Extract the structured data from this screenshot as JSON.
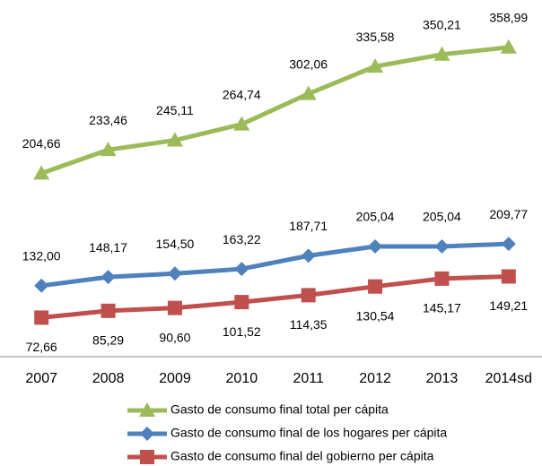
{
  "chart_data": {
    "type": "line",
    "categories": [
      "2007",
      "2008",
      "2009",
      "2010",
      "2011",
      "2012",
      "2013",
      "2014sd"
    ],
    "ylim": [
      0,
      630
    ],
    "y2lim": [
      -20,
      395
    ],
    "legend": "bottom",
    "series": [
      {
        "name": "Gasto de consumo final total per cápita",
        "color": "#9bbb59",
        "marker": "triangle",
        "axis": "y2",
        "values": [
          204.66,
          233.46,
          245.11,
          264.74,
          302.06,
          335.58,
          350.21,
          358.99
        ],
        "value_labels": [
          "204,66",
          "233,46",
          "245,11",
          "264,74",
          "302,06",
          "335,58",
          "350,21",
          "358,99"
        ]
      },
      {
        "name": "Gasto de consumo final de los hogares per cápita",
        "color": "#4f81bd",
        "marker": "diamond",
        "values": [
          132.0,
          148.17,
          154.5,
          163.22,
          187.71,
          205.04,
          205.04,
          209.77
        ],
        "value_labels": [
          "132,00",
          "148,17",
          "154,50",
          "163,22",
          "187,71",
          "205,04",
          "205,04",
          "209,77"
        ]
      },
      {
        "name": "Gasto de consumo final del gobierno per cápita",
        "color": "#c0504d",
        "marker": "square",
        "values": [
          72.66,
          85.29,
          90.6,
          101.52,
          114.35,
          130.54,
          145.17,
          149.21
        ],
        "value_labels": [
          "72,66",
          "85,29",
          "90,60",
          "101,52",
          "114,35",
          "130,54",
          "145,17",
          "149,21"
        ]
      }
    ]
  }
}
